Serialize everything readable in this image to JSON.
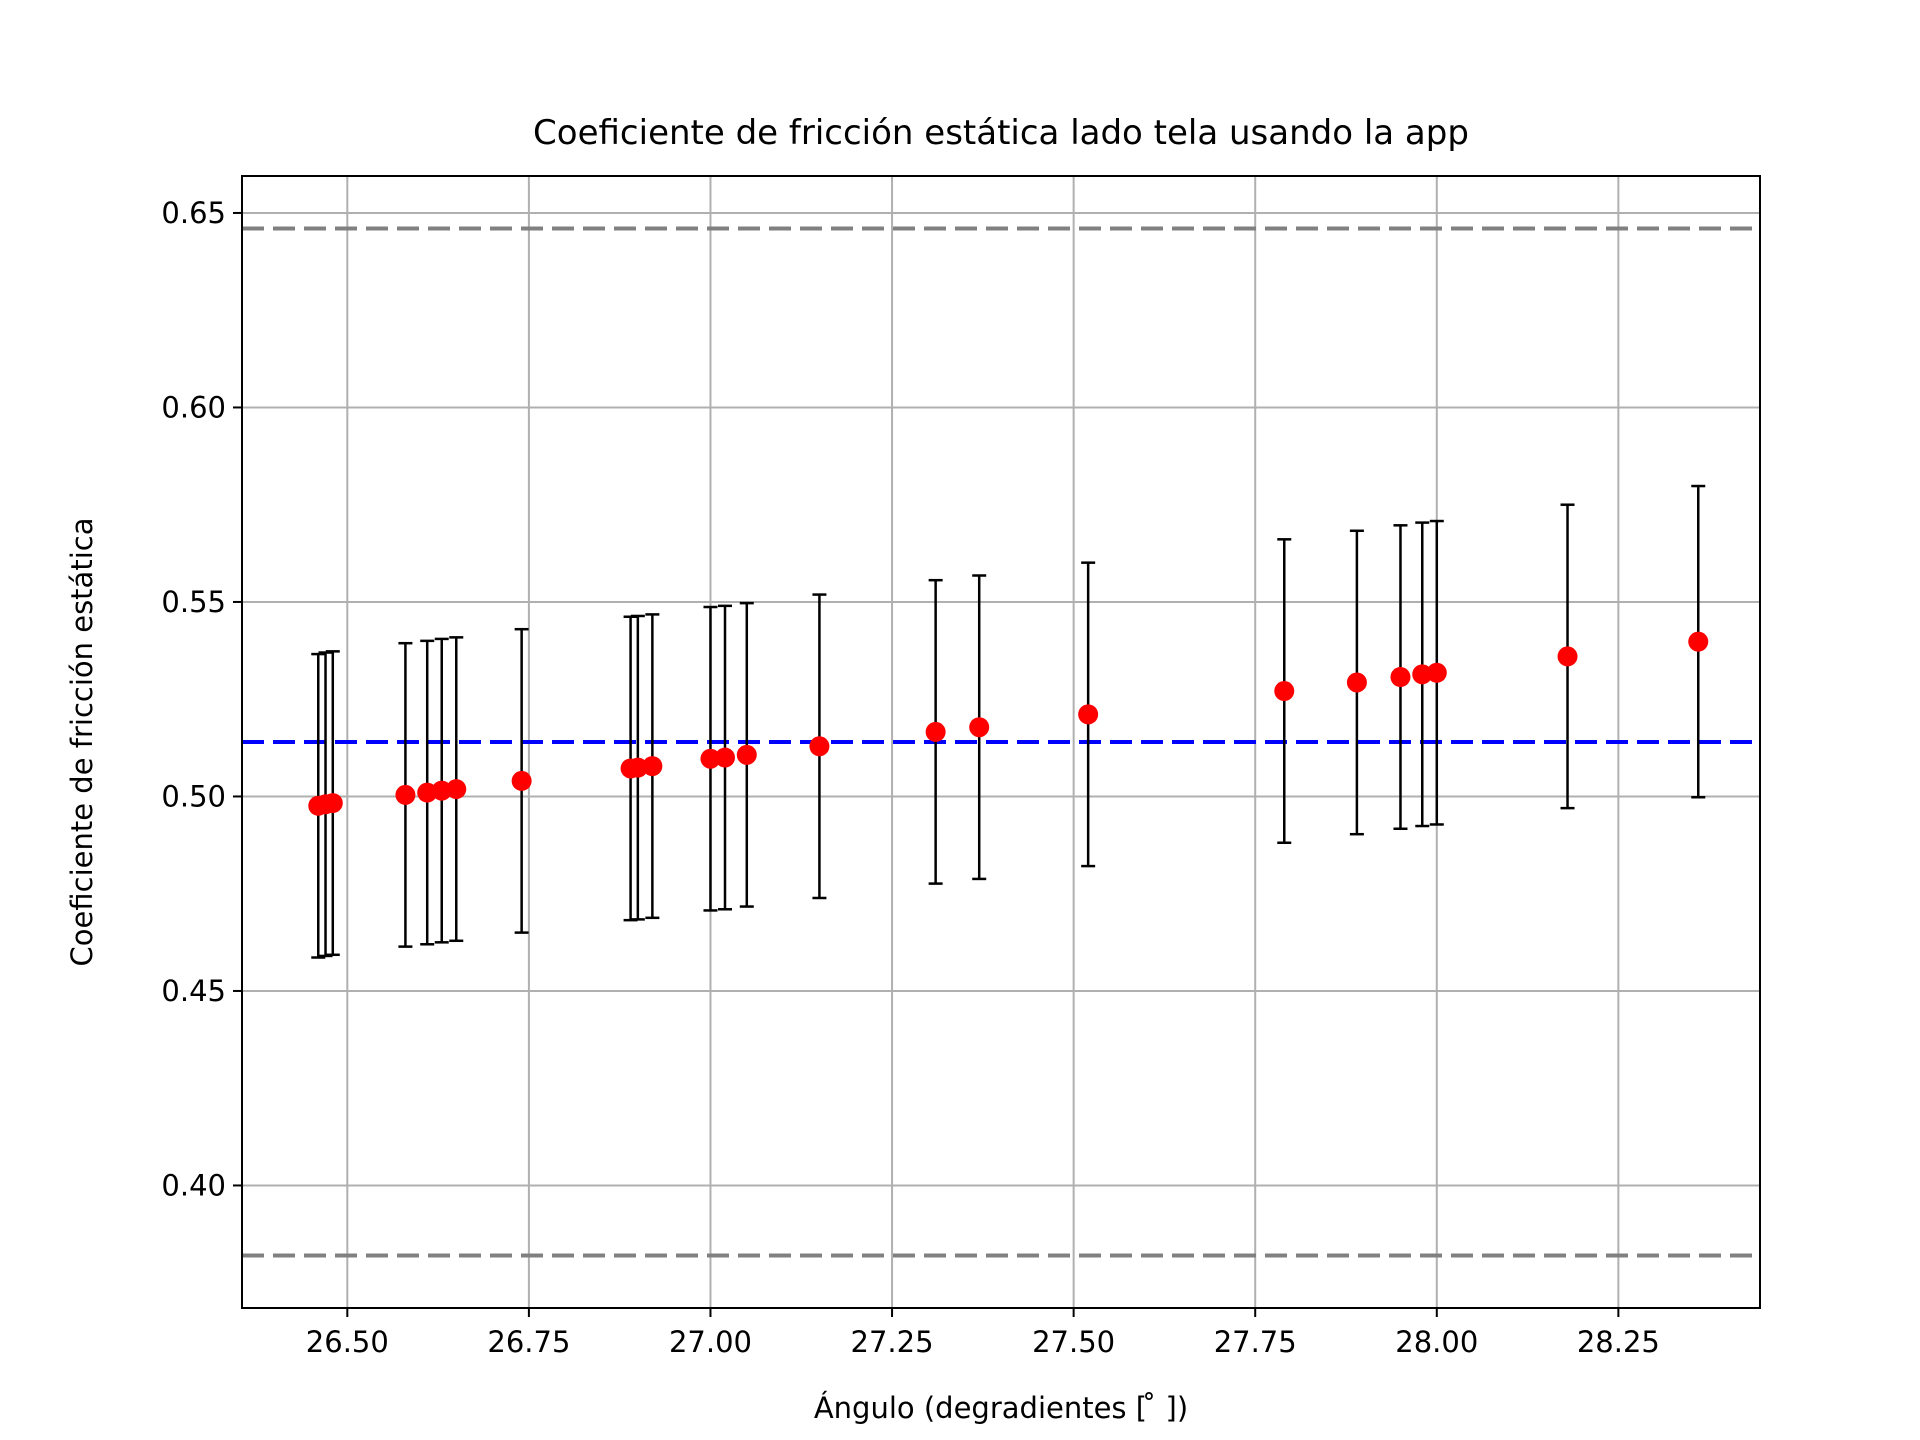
{
  "chart_data": {
    "type": "scatter",
    "title": "Coeficiente de fricción estática lado tela usando la app",
    "xlabel": "Ángulo (degradientes [$^\\circ$])",
    "xlabel_display": "Ángulo (degradientes [ ̊ ])",
    "ylabel": "Coeficiente de fricción estática",
    "xlim": [
      26.355,
      28.445
    ],
    "ylim": [
      0.3685,
      0.6595
    ],
    "xticks": [
      26.5,
      26.75,
      27.0,
      27.25,
      27.5,
      27.75,
      28.0,
      28.25
    ],
    "xtick_labels": [
      "26.50",
      "26.75",
      "27.00",
      "27.25",
      "27.50",
      "27.75",
      "28.00",
      "28.25"
    ],
    "yticks": [
      0.4,
      0.45,
      0.5,
      0.55,
      0.6,
      0.65
    ],
    "ytick_labels": [
      "0.40",
      "0.45",
      "0.50",
      "0.55",
      "0.60",
      "0.65"
    ],
    "grid": true,
    "legend": "none",
    "series": [
      {
        "marker_color": "#ff0000",
        "errorbar_color": "#000000",
        "points": [
          {
            "x": 26.46,
            "y": 0.4976,
            "err": 0.039
          },
          {
            "x": 26.47,
            "y": 0.498,
            "err": 0.039
          },
          {
            "x": 26.48,
            "y": 0.4983,
            "err": 0.039
          },
          {
            "x": 26.58,
            "y": 0.5004,
            "err": 0.039
          },
          {
            "x": 26.61,
            "y": 0.501,
            "err": 0.039
          },
          {
            "x": 26.63,
            "y": 0.5015,
            "err": 0.039
          },
          {
            "x": 26.65,
            "y": 0.5019,
            "err": 0.039
          },
          {
            "x": 26.74,
            "y": 0.504,
            "err": 0.039
          },
          {
            "x": 26.89,
            "y": 0.5072,
            "err": 0.039
          },
          {
            "x": 26.9,
            "y": 0.5074,
            "err": 0.039
          },
          {
            "x": 26.92,
            "y": 0.5078,
            "err": 0.039
          },
          {
            "x": 27.0,
            "y": 0.5097,
            "err": 0.039
          },
          {
            "x": 27.02,
            "y": 0.51,
            "err": 0.039
          },
          {
            "x": 27.05,
            "y": 0.5107,
            "err": 0.039
          },
          {
            "x": 27.15,
            "y": 0.5129,
            "err": 0.039
          },
          {
            "x": 27.31,
            "y": 0.5166,
            "err": 0.039
          },
          {
            "x": 27.37,
            "y": 0.5178,
            "err": 0.039
          },
          {
            "x": 27.52,
            "y": 0.5211,
            "err": 0.039
          },
          {
            "x": 27.79,
            "y": 0.5271,
            "err": 0.039
          },
          {
            "x": 27.89,
            "y": 0.5293,
            "err": 0.039
          },
          {
            "x": 27.95,
            "y": 0.5307,
            "err": 0.039
          },
          {
            "x": 27.98,
            "y": 0.5314,
            "err": 0.039
          },
          {
            "x": 28.0,
            "y": 0.5318,
            "err": 0.039
          },
          {
            "x": 28.18,
            "y": 0.536,
            "err": 0.039
          },
          {
            "x": 28.36,
            "y": 0.5398,
            "err": 0.04
          }
        ]
      }
    ],
    "hlines": [
      {
        "y": 0.514,
        "color": "#0000ff",
        "style": "dashed"
      },
      {
        "y": 0.646,
        "color": "#808080",
        "style": "dashed"
      },
      {
        "y": 0.382,
        "color": "#808080",
        "style": "dashed"
      }
    ]
  }
}
